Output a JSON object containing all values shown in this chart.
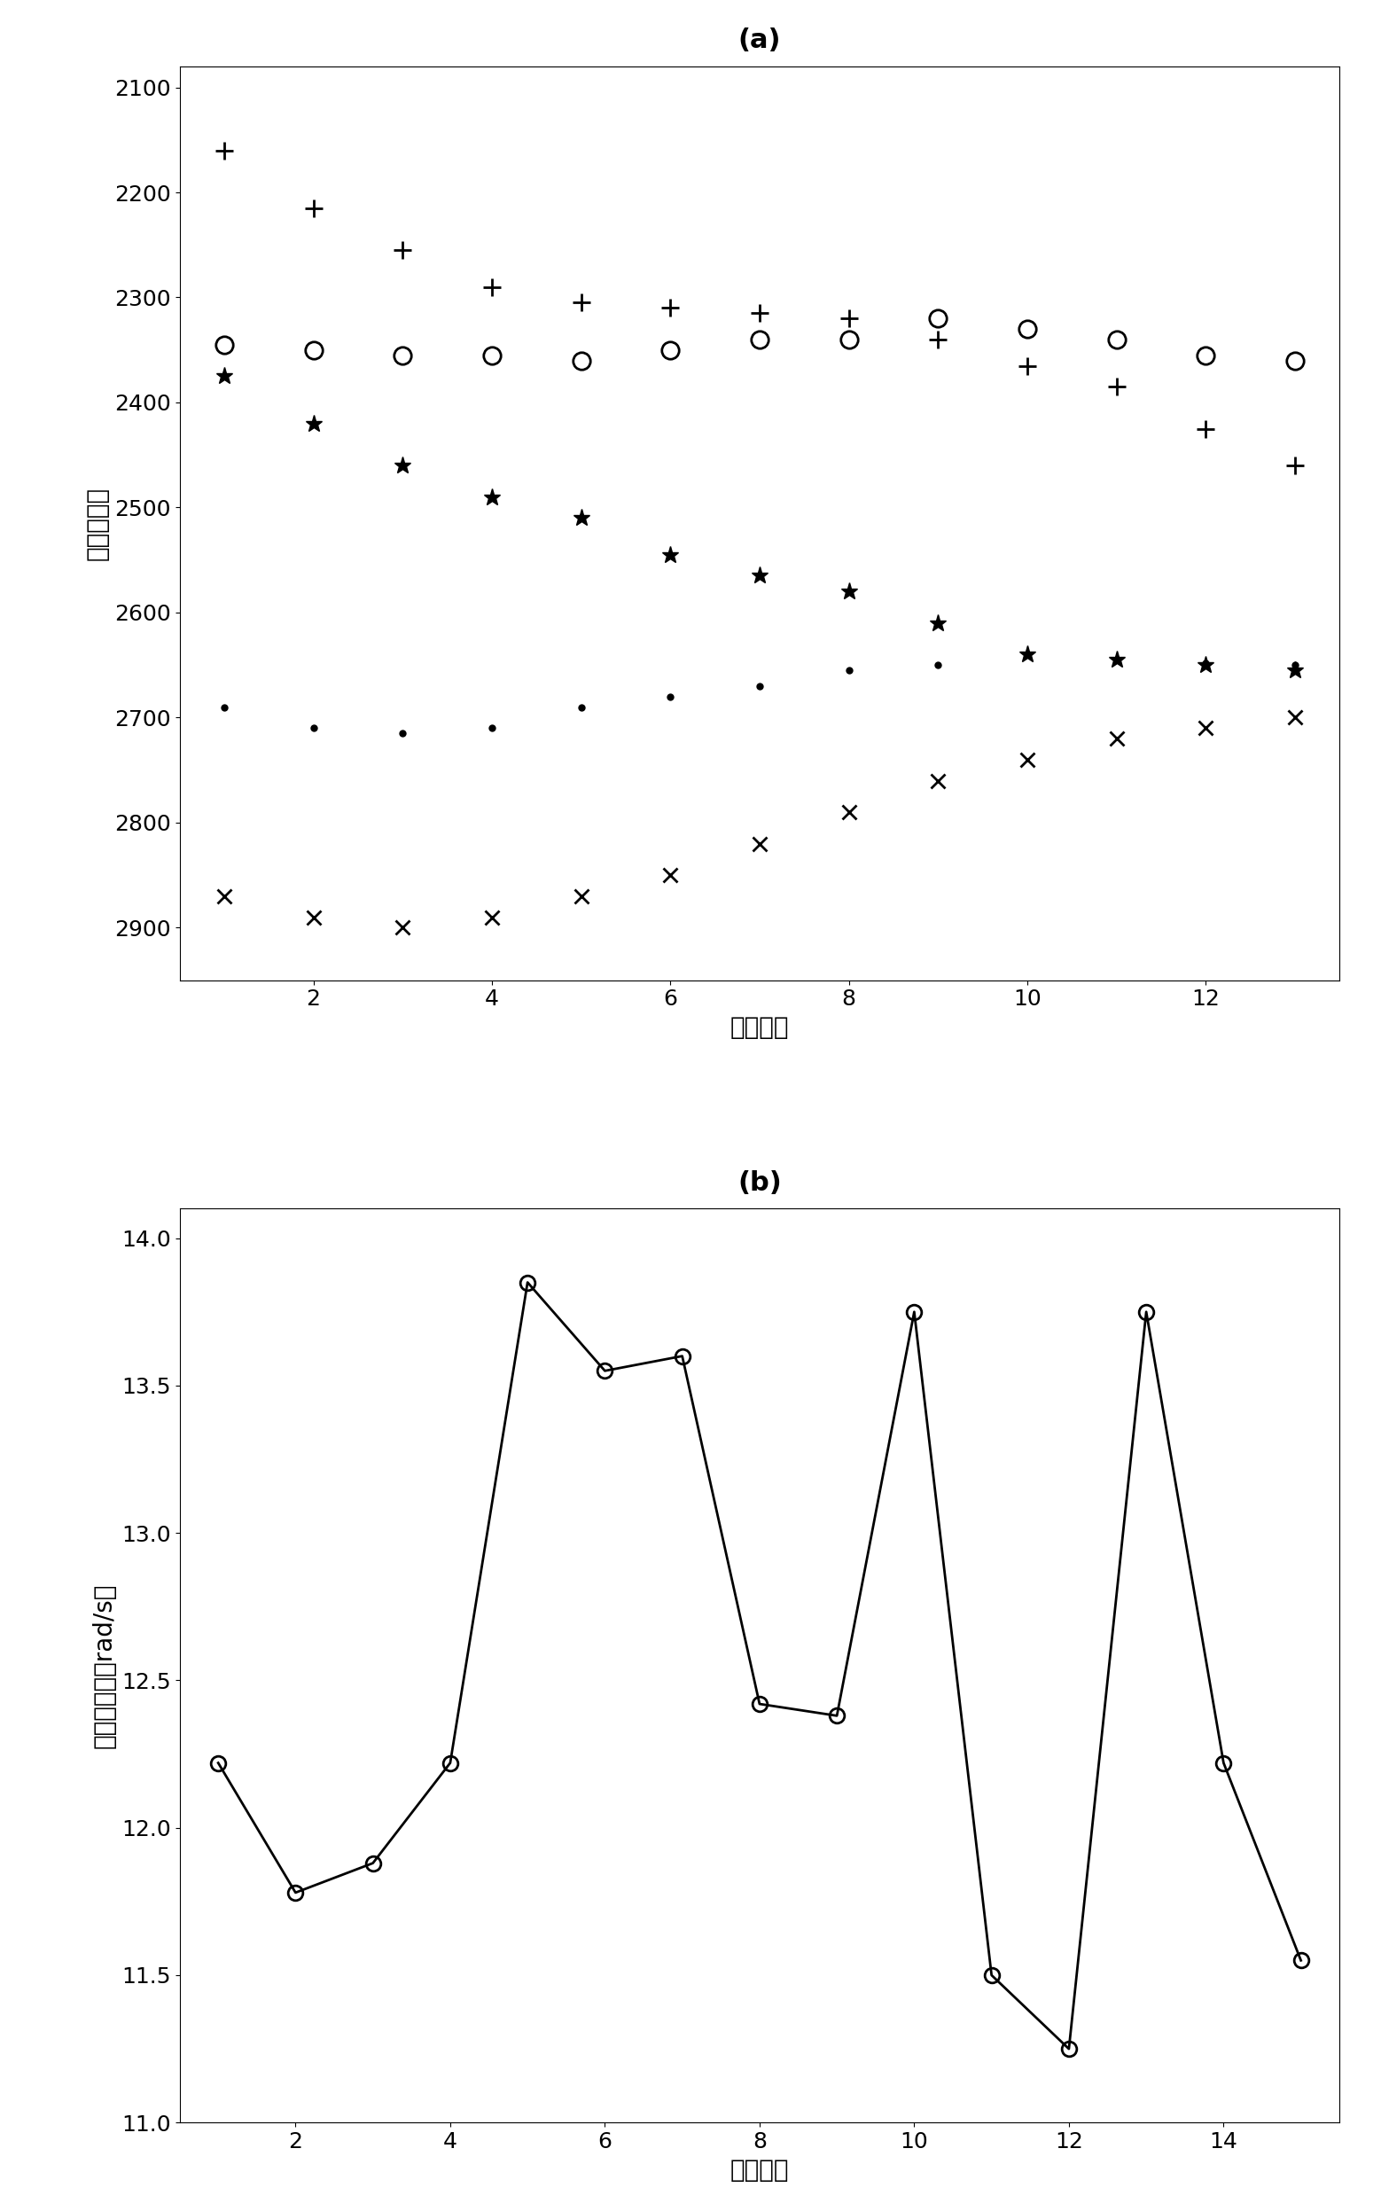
{
  "chart_a": {
    "xlabel": "回波序号",
    "ylabel": "散射点航迹",
    "label_a": "(a)",
    "xlim": [
      0.5,
      13.5
    ],
    "ylim": [
      2950,
      2080
    ],
    "yticks": [
      2100,
      2200,
      2300,
      2400,
      2500,
      2600,
      2700,
      2800,
      2900
    ],
    "xticks": [
      2,
      4,
      6,
      8,
      10,
      12
    ],
    "series_plus": {
      "x": [
        1,
        2,
        3,
        4,
        5,
        6,
        7,
        8,
        9,
        10,
        11,
        12,
        13
      ],
      "y": [
        2160,
        2215,
        2255,
        2290,
        2305,
        2310,
        2315,
        2320,
        2340,
        2365,
        2385,
        2425,
        2460
      ]
    },
    "series_circle": {
      "x": [
        1,
        2,
        3,
        4,
        5,
        6,
        7,
        8,
        9,
        10,
        11,
        12,
        13
      ],
      "y": [
        2345,
        2350,
        2355,
        2355,
        2360,
        2350,
        2340,
        2340,
        2320,
        2330,
        2340,
        2355,
        2360
      ]
    },
    "series_star": {
      "x": [
        1,
        2,
        3,
        4,
        5,
        6,
        7,
        8,
        9,
        10,
        11,
        12,
        13
      ],
      "y": [
        2375,
        2420,
        2460,
        2490,
        2510,
        2545,
        2565,
        2580,
        2610,
        2640,
        2645,
        2650,
        2655
      ]
    },
    "series_dot": {
      "x": [
        1,
        2,
        3,
        4,
        5,
        6,
        7,
        8,
        9,
        10,
        11,
        12,
        13
      ],
      "y": [
        2690,
        2710,
        2715,
        2710,
        2690,
        2680,
        2670,
        2655,
        2650,
        2640,
        2645,
        2648,
        2650
      ]
    },
    "series_cross": {
      "x": [
        1,
        2,
        3,
        4,
        5,
        6,
        7,
        8,
        9,
        10,
        11,
        12,
        13
      ],
      "y": [
        2870,
        2890,
        2900,
        2890,
        2870,
        2850,
        2820,
        2790,
        2760,
        2740,
        2720,
        2710,
        2700
      ]
    }
  },
  "chart_b": {
    "xlabel": "回波序号",
    "ylabel": "旋转角频率（rad/s）",
    "label_b": "(b)",
    "xlim": [
      0.5,
      15.5
    ],
    "ylim": [
      11.0,
      14.1
    ],
    "yticks": [
      11.0,
      11.5,
      12.0,
      12.5,
      13.0,
      13.5,
      14.0
    ],
    "xticks": [
      2,
      4,
      6,
      8,
      10,
      12,
      14
    ],
    "x": [
      1,
      2,
      3,
      4,
      5,
      6,
      7,
      8,
      9,
      10,
      11,
      12,
      13,
      14,
      15
    ],
    "y": [
      12.22,
      11.78,
      11.88,
      12.22,
      13.85,
      13.55,
      13.6,
      12.42,
      12.38,
      13.75,
      11.5,
      11.25,
      13.75,
      12.22,
      11.55
    ]
  }
}
